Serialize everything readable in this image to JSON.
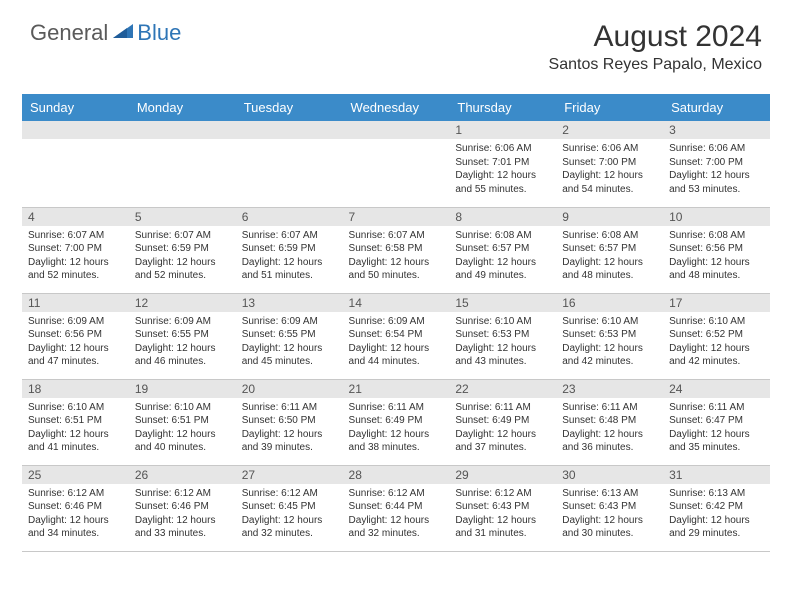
{
  "brand": {
    "text1": "General",
    "text2": "Blue",
    "color_general": "#5a5a5a",
    "color_blue": "#2e75b6"
  },
  "title": "August 2024",
  "location": "Santos Reyes Papalo, Mexico",
  "colors": {
    "header_bg": "#3b8bc9",
    "header_text": "#ffffff",
    "daynum_bg": "#e6e6e6",
    "border": "#c8c8c8",
    "text": "#333333"
  },
  "weekdays": [
    "Sunday",
    "Monday",
    "Tuesday",
    "Wednesday",
    "Thursday",
    "Friday",
    "Saturday"
  ],
  "weeks": [
    [
      {
        "n": "",
        "sr": "",
        "ss": "",
        "dl": ""
      },
      {
        "n": "",
        "sr": "",
        "ss": "",
        "dl": ""
      },
      {
        "n": "",
        "sr": "",
        "ss": "",
        "dl": ""
      },
      {
        "n": "",
        "sr": "",
        "ss": "",
        "dl": ""
      },
      {
        "n": "1",
        "sr": "Sunrise: 6:06 AM",
        "ss": "Sunset: 7:01 PM",
        "dl": "Daylight: 12 hours and 55 minutes."
      },
      {
        "n": "2",
        "sr": "Sunrise: 6:06 AM",
        "ss": "Sunset: 7:00 PM",
        "dl": "Daylight: 12 hours and 54 minutes."
      },
      {
        "n": "3",
        "sr": "Sunrise: 6:06 AM",
        "ss": "Sunset: 7:00 PM",
        "dl": "Daylight: 12 hours and 53 minutes."
      }
    ],
    [
      {
        "n": "4",
        "sr": "Sunrise: 6:07 AM",
        "ss": "Sunset: 7:00 PM",
        "dl": "Daylight: 12 hours and 52 minutes."
      },
      {
        "n": "5",
        "sr": "Sunrise: 6:07 AM",
        "ss": "Sunset: 6:59 PM",
        "dl": "Daylight: 12 hours and 52 minutes."
      },
      {
        "n": "6",
        "sr": "Sunrise: 6:07 AM",
        "ss": "Sunset: 6:59 PM",
        "dl": "Daylight: 12 hours and 51 minutes."
      },
      {
        "n": "7",
        "sr": "Sunrise: 6:07 AM",
        "ss": "Sunset: 6:58 PM",
        "dl": "Daylight: 12 hours and 50 minutes."
      },
      {
        "n": "8",
        "sr": "Sunrise: 6:08 AM",
        "ss": "Sunset: 6:57 PM",
        "dl": "Daylight: 12 hours and 49 minutes."
      },
      {
        "n": "9",
        "sr": "Sunrise: 6:08 AM",
        "ss": "Sunset: 6:57 PM",
        "dl": "Daylight: 12 hours and 48 minutes."
      },
      {
        "n": "10",
        "sr": "Sunrise: 6:08 AM",
        "ss": "Sunset: 6:56 PM",
        "dl": "Daylight: 12 hours and 48 minutes."
      }
    ],
    [
      {
        "n": "11",
        "sr": "Sunrise: 6:09 AM",
        "ss": "Sunset: 6:56 PM",
        "dl": "Daylight: 12 hours and 47 minutes."
      },
      {
        "n": "12",
        "sr": "Sunrise: 6:09 AM",
        "ss": "Sunset: 6:55 PM",
        "dl": "Daylight: 12 hours and 46 minutes."
      },
      {
        "n": "13",
        "sr": "Sunrise: 6:09 AM",
        "ss": "Sunset: 6:55 PM",
        "dl": "Daylight: 12 hours and 45 minutes."
      },
      {
        "n": "14",
        "sr": "Sunrise: 6:09 AM",
        "ss": "Sunset: 6:54 PM",
        "dl": "Daylight: 12 hours and 44 minutes."
      },
      {
        "n": "15",
        "sr": "Sunrise: 6:10 AM",
        "ss": "Sunset: 6:53 PM",
        "dl": "Daylight: 12 hours and 43 minutes."
      },
      {
        "n": "16",
        "sr": "Sunrise: 6:10 AM",
        "ss": "Sunset: 6:53 PM",
        "dl": "Daylight: 12 hours and 42 minutes."
      },
      {
        "n": "17",
        "sr": "Sunrise: 6:10 AM",
        "ss": "Sunset: 6:52 PM",
        "dl": "Daylight: 12 hours and 42 minutes."
      }
    ],
    [
      {
        "n": "18",
        "sr": "Sunrise: 6:10 AM",
        "ss": "Sunset: 6:51 PM",
        "dl": "Daylight: 12 hours and 41 minutes."
      },
      {
        "n": "19",
        "sr": "Sunrise: 6:10 AM",
        "ss": "Sunset: 6:51 PM",
        "dl": "Daylight: 12 hours and 40 minutes."
      },
      {
        "n": "20",
        "sr": "Sunrise: 6:11 AM",
        "ss": "Sunset: 6:50 PM",
        "dl": "Daylight: 12 hours and 39 minutes."
      },
      {
        "n": "21",
        "sr": "Sunrise: 6:11 AM",
        "ss": "Sunset: 6:49 PM",
        "dl": "Daylight: 12 hours and 38 minutes."
      },
      {
        "n": "22",
        "sr": "Sunrise: 6:11 AM",
        "ss": "Sunset: 6:49 PM",
        "dl": "Daylight: 12 hours and 37 minutes."
      },
      {
        "n": "23",
        "sr": "Sunrise: 6:11 AM",
        "ss": "Sunset: 6:48 PM",
        "dl": "Daylight: 12 hours and 36 minutes."
      },
      {
        "n": "24",
        "sr": "Sunrise: 6:11 AM",
        "ss": "Sunset: 6:47 PM",
        "dl": "Daylight: 12 hours and 35 minutes."
      }
    ],
    [
      {
        "n": "25",
        "sr": "Sunrise: 6:12 AM",
        "ss": "Sunset: 6:46 PM",
        "dl": "Daylight: 12 hours and 34 minutes."
      },
      {
        "n": "26",
        "sr": "Sunrise: 6:12 AM",
        "ss": "Sunset: 6:46 PM",
        "dl": "Daylight: 12 hours and 33 minutes."
      },
      {
        "n": "27",
        "sr": "Sunrise: 6:12 AM",
        "ss": "Sunset: 6:45 PM",
        "dl": "Daylight: 12 hours and 32 minutes."
      },
      {
        "n": "28",
        "sr": "Sunrise: 6:12 AM",
        "ss": "Sunset: 6:44 PM",
        "dl": "Daylight: 12 hours and 32 minutes."
      },
      {
        "n": "29",
        "sr": "Sunrise: 6:12 AM",
        "ss": "Sunset: 6:43 PM",
        "dl": "Daylight: 12 hours and 31 minutes."
      },
      {
        "n": "30",
        "sr": "Sunrise: 6:13 AM",
        "ss": "Sunset: 6:43 PM",
        "dl": "Daylight: 12 hours and 30 minutes."
      },
      {
        "n": "31",
        "sr": "Sunrise: 6:13 AM",
        "ss": "Sunset: 6:42 PM",
        "dl": "Daylight: 12 hours and 29 minutes."
      }
    ]
  ]
}
